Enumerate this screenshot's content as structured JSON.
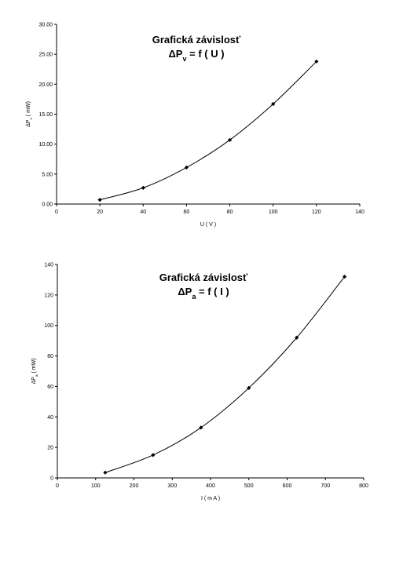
{
  "chart_data": [
    {
      "type": "scatter",
      "title": "Grafická závislosť",
      "subtitle_main": "ΔP",
      "subtitle_sub": "v",
      "subtitle_rest": " = f ( U )",
      "xlabel": "U ( V )",
      "ylabel_main": "ΔP",
      "ylabel_sub": "v",
      "ylabel_rest": " ( mW)",
      "x": [
        20,
        40,
        60,
        80,
        100,
        120
      ],
      "y": [
        0.7,
        2.7,
        6.1,
        10.7,
        16.7,
        23.8
      ],
      "xlim": [
        0,
        140
      ],
      "ylim": [
        0,
        30
      ],
      "xticks": [
        "0",
        "20",
        "40",
        "60",
        "80",
        "100",
        "120",
        "140"
      ],
      "yticks": [
        "0.00",
        "5.00",
        "10.00",
        "15.00",
        "20.00",
        "25.00",
        "30.00"
      ],
      "grid": false,
      "line_color": "#000000"
    },
    {
      "type": "scatter",
      "title": "Grafická závislosť",
      "subtitle_main": "ΔP",
      "subtitle_sub": "a",
      "subtitle_rest": " = f ( I )",
      "xlabel": "I ( m A )",
      "ylabel_main": "ΔP",
      "ylabel_sub": "a",
      "ylabel_rest": " ( mW)",
      "x": [
        125,
        250,
        375,
        500,
        625,
        750
      ],
      "y": [
        3.5,
        15,
        33,
        59,
        92,
        132
      ],
      "xlim": [
        0,
        800
      ],
      "ylim": [
        0,
        140
      ],
      "xticks": [
        "0",
        "100",
        "200",
        "300",
        "400",
        "500",
        "600",
        "700",
        "800"
      ],
      "yticks": [
        "0",
        "20",
        "40",
        "60",
        "80",
        "100",
        "120",
        "140"
      ],
      "grid": false,
      "line_color": "#000000"
    }
  ]
}
